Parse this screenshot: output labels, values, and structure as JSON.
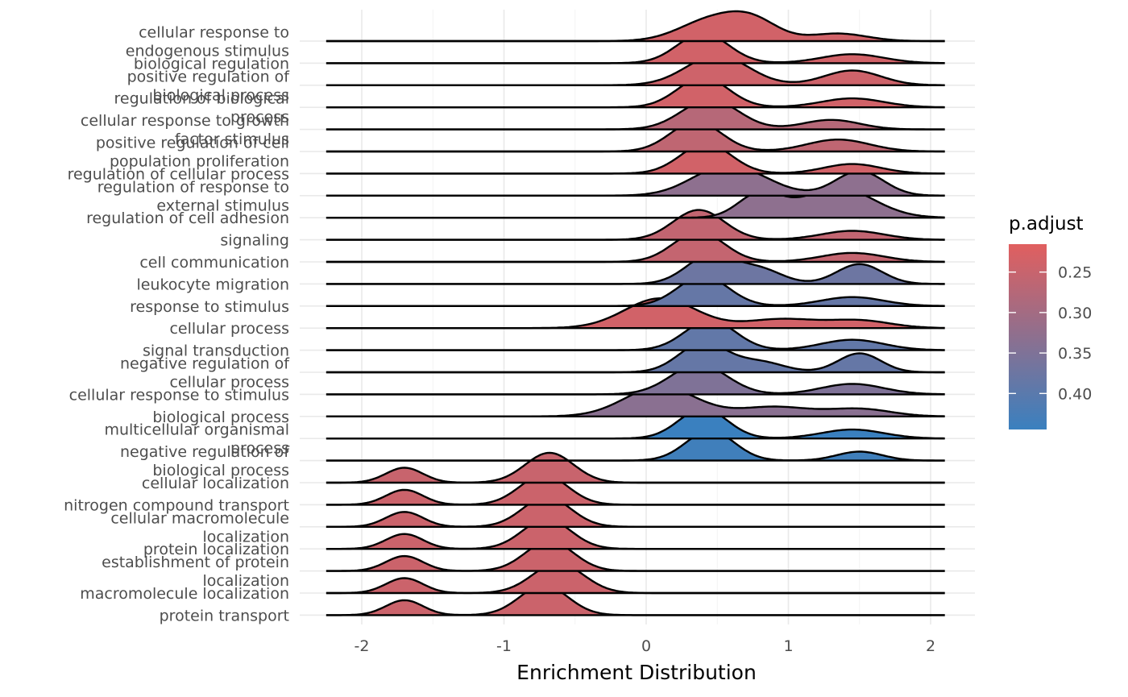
{
  "chart_data": {
    "type": "ridgeline",
    "xlabel": "Enrichment Distribution",
    "ylabel": "",
    "xlim": [
      -2.35,
      2.35
    ],
    "xticks": [
      -2,
      -1,
      0,
      1,
      2
    ],
    "x_range_drawn": [
      -2.25,
      2.1
    ],
    "grid": true,
    "legend": {
      "title": "p.adjust",
      "position": "right",
      "min": 0.2155,
      "max": 0.4445,
      "ticks": [
        0.25,
        0.3,
        0.35,
        0.4
      ],
      "tick_labels": [
        "0.25",
        "0.30",
        "0.35",
        "0.40"
      ],
      "color_low": "#E15F5F",
      "color_high": "#3A80BF"
    },
    "categories": [
      {
        "label": [
          "cellular response to",
          "endogenous stimulus"
        ],
        "p_adjust": 0.238,
        "components": [
          [
            0.45,
            0.22,
            0.6
          ],
          [
            0.75,
            0.18,
            0.55
          ],
          [
            1.35,
            0.2,
            0.22
          ]
        ]
      },
      {
        "label": [
          "biological regulation"
        ],
        "p_adjust": 0.238,
        "components": [
          [
            0.4,
            0.18,
            1.0
          ],
          [
            1.45,
            0.22,
            0.3
          ]
        ]
      },
      {
        "label": [
          "positive regulation of",
          "biological process"
        ],
        "p_adjust": 0.242,
        "components": [
          [
            0.5,
            0.22,
            0.85
          ],
          [
            1.45,
            0.2,
            0.42
          ]
        ]
      },
      {
        "label": [
          "regulation of biological",
          "process"
        ],
        "p_adjust": 0.238,
        "components": [
          [
            0.4,
            0.18,
            1.0
          ],
          [
            1.45,
            0.22,
            0.3
          ]
        ]
      },
      {
        "label": [
          "cellular response to growth",
          "factor stimulus"
        ],
        "p_adjust": 0.275,
        "components": [
          [
            0.45,
            0.2,
            1.0
          ],
          [
            1.3,
            0.2,
            0.32
          ]
        ]
      },
      {
        "label": [
          "positive regulation of cell",
          "population proliferation"
        ],
        "p_adjust": 0.262,
        "components": [
          [
            0.35,
            0.18,
            1.0
          ],
          [
            1.35,
            0.22,
            0.4
          ]
        ]
      },
      {
        "label": [
          "regulation of cellular process"
        ],
        "p_adjust": 0.238,
        "components": [
          [
            0.42,
            0.18,
            1.0
          ],
          [
            1.45,
            0.2,
            0.32
          ]
        ]
      },
      {
        "label": [
          "regulation of response to",
          "external stimulus"
        ],
        "p_adjust": 0.33,
        "components": [
          [
            0.5,
            0.22,
            0.75
          ],
          [
            0.75,
            0.22,
            0.45
          ],
          [
            1.5,
            0.17,
            0.85
          ]
        ]
      },
      {
        "label": [
          "regulation of cell adhesion"
        ],
        "p_adjust": 0.33,
        "components": [
          [
            0.8,
            0.15,
            0.8
          ],
          [
            1.35,
            0.25,
            1.0
          ]
        ]
      },
      {
        "label": [
          "signaling"
        ],
        "p_adjust": 0.258,
        "components": [
          [
            0.37,
            0.18,
            1.0
          ],
          [
            1.45,
            0.22,
            0.3
          ]
        ]
      },
      {
        "label": [
          "cell communication"
        ],
        "p_adjust": 0.255,
        "components": [
          [
            0.37,
            0.18,
            1.0
          ],
          [
            1.45,
            0.22,
            0.3
          ]
        ]
      },
      {
        "label": [
          "leukocyte migration"
        ],
        "p_adjust": 0.375,
        "components": [
          [
            0.45,
            0.17,
            1.0
          ],
          [
            0.8,
            0.16,
            0.5
          ],
          [
            1.5,
            0.16,
            0.7
          ]
        ]
      },
      {
        "label": [
          "response to stimulus"
        ],
        "p_adjust": 0.385,
        "components": [
          [
            0.4,
            0.18,
            1.0
          ],
          [
            1.45,
            0.22,
            0.3
          ]
        ]
      },
      {
        "label": [
          "cellular process"
        ],
        "p_adjust": 0.238,
        "components": [
          [
            0.1,
            0.25,
            1.0
          ],
          [
            0.95,
            0.25,
            0.3
          ],
          [
            1.5,
            0.22,
            0.25
          ]
        ]
      },
      {
        "label": [
          "signal transduction"
        ],
        "p_adjust": 0.39,
        "components": [
          [
            0.45,
            0.18,
            1.0
          ],
          [
            1.45,
            0.22,
            0.35
          ]
        ]
      },
      {
        "label": [
          "negative regulation of",
          "cellular process"
        ],
        "p_adjust": 0.385,
        "components": [
          [
            0.4,
            0.17,
            1.0
          ],
          [
            0.8,
            0.17,
            0.35
          ],
          [
            1.5,
            0.15,
            0.65
          ]
        ]
      },
      {
        "label": [
          "cellular response to stimulus"
        ],
        "p_adjust": 0.35,
        "components": [
          [
            0.37,
            0.2,
            1.0
          ],
          [
            1.45,
            0.22,
            0.35
          ]
        ]
      },
      {
        "label": [
          "biological process"
        ],
        "p_adjust": 0.335,
        "components": [
          [
            0.1,
            0.25,
            1.0
          ],
          [
            0.9,
            0.25,
            0.32
          ],
          [
            1.5,
            0.22,
            0.25
          ]
        ]
      },
      {
        "label": [
          "multicellular organismal",
          "process"
        ],
        "p_adjust": 0.444,
        "components": [
          [
            0.4,
            0.17,
            1.0
          ],
          [
            1.45,
            0.22,
            0.3
          ]
        ]
      },
      {
        "label": [
          "negative regulation of",
          "biological process"
        ],
        "p_adjust": 0.436,
        "components": [
          [
            0.45,
            0.17,
            1.0
          ],
          [
            1.5,
            0.16,
            0.3
          ]
        ]
      },
      {
        "label": [
          "cellular localization"
        ],
        "p_adjust": 0.25,
        "components": [
          [
            -1.7,
            0.13,
            0.5
          ],
          [
            -0.68,
            0.17,
            1.0
          ]
        ]
      },
      {
        "label": [
          "nitrogen compound transport"
        ],
        "p_adjust": 0.245,
        "components": [
          [
            -1.7,
            0.13,
            0.5
          ],
          [
            -0.72,
            0.17,
            1.0
          ]
        ]
      },
      {
        "label": [
          "cellular macromolecule",
          "localization"
        ],
        "p_adjust": 0.245,
        "components": [
          [
            -1.7,
            0.13,
            0.5
          ],
          [
            -0.7,
            0.17,
            1.0
          ]
        ]
      },
      {
        "label": [
          "protein localization"
        ],
        "p_adjust": 0.245,
        "components": [
          [
            -1.7,
            0.13,
            0.5
          ],
          [
            -0.7,
            0.17,
            1.0
          ]
        ]
      },
      {
        "label": [
          "establishment of protein",
          "localization"
        ],
        "p_adjust": 0.245,
        "components": [
          [
            -1.7,
            0.13,
            0.5
          ],
          [
            -0.68,
            0.17,
            1.0
          ]
        ]
      },
      {
        "label": [
          "macromolecule localization"
        ],
        "p_adjust": 0.245,
        "components": [
          [
            -1.7,
            0.13,
            0.5
          ],
          [
            -0.62,
            0.18,
            1.0
          ]
        ]
      },
      {
        "label": [
          "protein transport"
        ],
        "p_adjust": 0.245,
        "components": [
          [
            -1.7,
            0.13,
            0.5
          ],
          [
            -0.72,
            0.17,
            1.0
          ]
        ]
      }
    ]
  }
}
